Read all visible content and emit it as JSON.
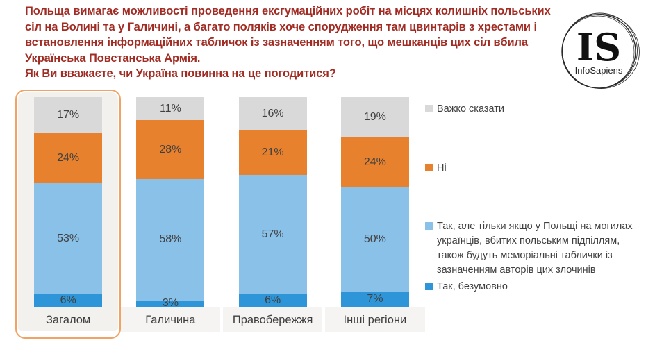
{
  "title": {
    "statement": "Польща вимагає можливості проведення ексгумаційних робіт на місцях колишніх польських сіл на Волині та у Галичині, а багато поляків хоче спорудження там цвинтарів з хрестами і встановлення інформаційних табличок із зазначенням того, що мешканців цих сіл вбила Українська Повстанська Армія.",
    "question": "Як Ви вважаєте, чи Україна повинна на це погодитися?"
  },
  "logo": {
    "initials": "IS",
    "name": "InfoSapiens"
  },
  "chart_data": {
    "type": "bar",
    "stacked": true,
    "unit": "%",
    "title": "",
    "xlabel": "",
    "ylabel": "",
    "ylim": [
      0,
      100
    ],
    "legend_position": "right",
    "highlighted_category": "Загалом",
    "categories": [
      "Загалом",
      "Галичина",
      "Правобережжя",
      "Інші регіони"
    ],
    "series": [
      {
        "name": "Так, безумовно",
        "color": "#2E96D8",
        "values": [
          6,
          3,
          6,
          7
        ]
      },
      {
        "name": "Так, але тільки якщо у Польщі на могилах українців, вбитих польським підпіллям, також будуть меморіальні таблички із зазначенням авторів цих злочинів",
        "color": "#8AC1E9",
        "values": [
          53,
          58,
          57,
          50
        ]
      },
      {
        "name": "Ні",
        "color": "#E8812D",
        "values": [
          24,
          28,
          21,
          24
        ]
      },
      {
        "name": "Важко сказати",
        "color": "#D9D9D9",
        "values": [
          17,
          11,
          16,
          19
        ]
      }
    ],
    "colors": {
      "title_text": "#A12C24",
      "value_labels": "#404040",
      "highlight_border": "#F0A365",
      "highlight_fill": "#F2F1EE",
      "category_chip": "#F5F4F2"
    }
  }
}
